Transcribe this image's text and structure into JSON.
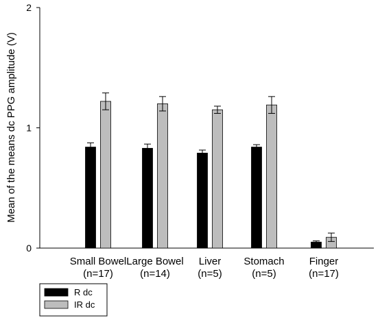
{
  "chart_data": {
    "type": "bar",
    "title": "",
    "xlabel": "",
    "ylabel": "Mean of the means dc PPG amplitude (V)",
    "ylim": [
      0,
      2
    ],
    "yticks": [
      "0",
      "1",
      "2"
    ],
    "categories": [
      {
        "line1": "Small Bowel",
        "line2": "(n=17)"
      },
      {
        "line1": "Large Bowel",
        "line2": "(n=14)"
      },
      {
        "line1": "Liver",
        "line2": "(n=5)"
      },
      {
        "line1": "Stomach",
        "line2": "(n=5)"
      },
      {
        "line1": "Finger",
        "line2": "(n=17)"
      }
    ],
    "series": [
      {
        "name": "R dc",
        "color": "#000000",
        "values": [
          0.84,
          0.83,
          0.79,
          0.84,
          0.05
        ],
        "errors": [
          0.035,
          0.035,
          0.025,
          0.02,
          0.01
        ]
      },
      {
        "name": "IR dc",
        "color": "#bdbdbd",
        "values": [
          1.22,
          1.2,
          1.15,
          1.19,
          0.09
        ],
        "errors": [
          0.07,
          0.06,
          0.03,
          0.07,
          0.035
        ]
      }
    ],
    "legend_position": "bottom-left",
    "grid": false
  }
}
